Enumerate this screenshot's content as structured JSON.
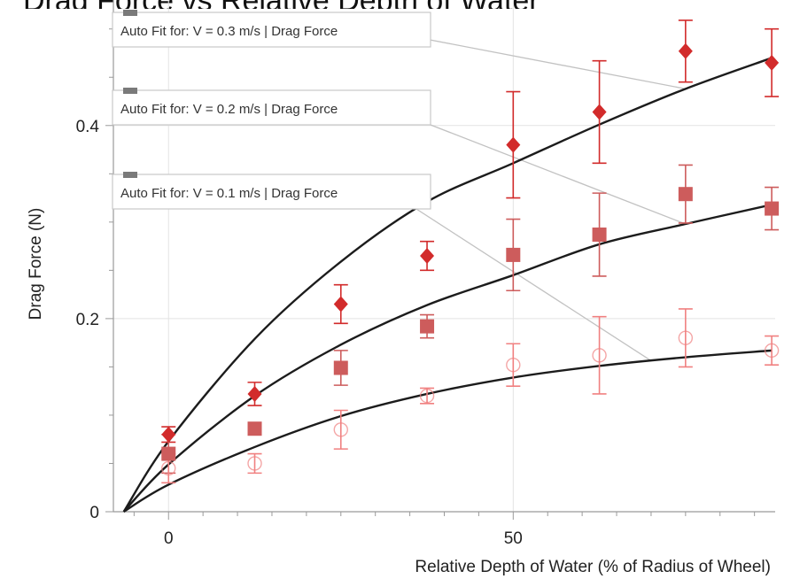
{
  "chart_data": {
    "type": "scatter",
    "title": "Drag Force vs Relative Depth of Water",
    "xlabel": "Relative Depth of Water (% of Radius of Wheel)",
    "ylabel": "Drag Force (N)",
    "xlim": [
      -8,
      88
    ],
    "ylim": [
      0,
      0.53
    ],
    "x_ticks": [
      0,
      50
    ],
    "x_tick_labels": [
      "0",
      "50"
    ],
    "y_ticks": [
      0,
      0.2,
      0.4
    ],
    "y_tick_labels": [
      "0",
      "0.2",
      "0.4"
    ],
    "grid": true,
    "series": [
      {
        "name": "V = 0.3 m/s",
        "marker": "diamond",
        "color": "#d22b2b",
        "x": [
          0,
          12.5,
          25,
          37.5,
          50,
          62.5,
          75,
          87.5
        ],
        "y": [
          0.08,
          0.122,
          0.215,
          0.265,
          0.38,
          0.414,
          0.477,
          0.465
        ],
        "err": [
          0.008,
          0.012,
          0.02,
          0.015,
          0.055,
          0.053,
          0.032,
          0.035
        ],
        "fit": [
          [
            -6.5,
            0
          ],
          [
            0,
            0.073
          ],
          [
            12.5,
            0.179
          ],
          [
            25,
            0.259
          ],
          [
            37.5,
            0.321
          ],
          [
            50,
            0.361
          ],
          [
            62.5,
            0.401
          ],
          [
            75,
            0.438
          ],
          [
            87.5,
            0.47
          ]
        ]
      },
      {
        "name": "V = 0.2 m/s",
        "marker": "square",
        "color": "#cd5c5c",
        "x": [
          0,
          12.5,
          25,
          37.5,
          50,
          62.5,
          75,
          87.5
        ],
        "y": [
          0.06,
          0.086,
          0.149,
          0.192,
          0.266,
          0.287,
          0.329,
          0.314
        ],
        "err": [
          0.02,
          0.0,
          0.018,
          0.012,
          0.037,
          0.043,
          0.03,
          0.022
        ],
        "fit": [
          [
            -6.5,
            0
          ],
          [
            0,
            0.049
          ],
          [
            12.5,
            0.12
          ],
          [
            25,
            0.173
          ],
          [
            37.5,
            0.214
          ],
          [
            50,
            0.245
          ],
          [
            62.5,
            0.277
          ],
          [
            75,
            0.298
          ],
          [
            87.5,
            0.318
          ]
        ]
      },
      {
        "name": "V = 0.1 m/s",
        "marker": "circle-open",
        "color": "#f08080",
        "x": [
          0,
          12.5,
          25,
          37.5,
          50,
          62.5,
          75,
          87.5
        ],
        "y": [
          0.045,
          0.05,
          0.085,
          0.12,
          0.152,
          0.162,
          0.18,
          0.167
        ],
        "err": [
          0.015,
          0.01,
          0.02,
          0.008,
          0.022,
          0.04,
          0.03,
          0.015
        ],
        "fit": [
          [
            -6.5,
            0
          ],
          [
            0,
            0.028
          ],
          [
            12.5,
            0.067
          ],
          [
            25,
            0.099
          ],
          [
            37.5,
            0.122
          ],
          [
            50,
            0.139
          ],
          [
            62.5,
            0.151
          ],
          [
            75,
            0.16
          ],
          [
            87.5,
            0.167
          ]
        ]
      }
    ],
    "annotations": [
      {
        "text": "Auto Fit for: V = 0.3 m/s | Drag Force",
        "series": 0,
        "anchor_x": 75
      },
      {
        "text": "Auto Fit for: V = 0.2 m/s | Drag Force",
        "series": 1,
        "anchor_x": 75
      },
      {
        "text": "Auto Fit for: V = 0.1 m/s | Drag Force",
        "series": 2,
        "anchor_x": 70
      }
    ]
  }
}
